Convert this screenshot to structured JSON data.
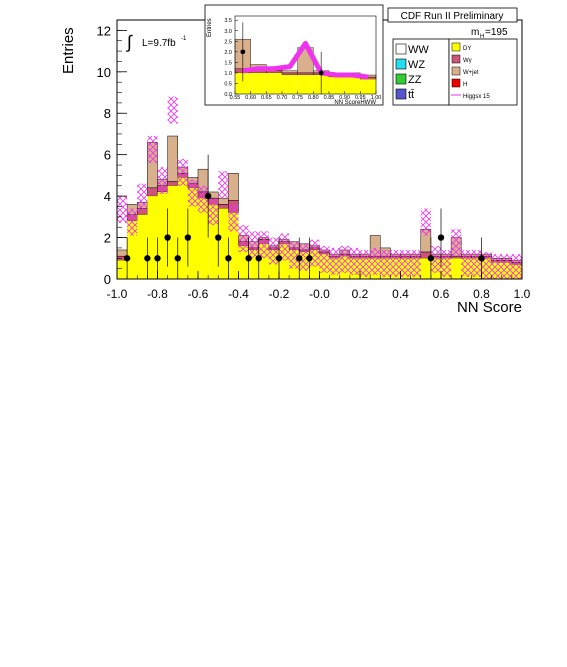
{
  "chart_data": {
    "type": "bar",
    "xlabel": "NN Score",
    "ylabel": "Entries",
    "xlim": [
      -1.0,
      1.0
    ],
    "ylim": [
      0,
      12.5
    ],
    "x_ticks": [
      "-1.0",
      "-0.8",
      "-0.6",
      "-0.4",
      "-0.2",
      "-0.0",
      "0.2",
      "0.4",
      "0.6",
      "0.8",
      "1.0"
    ],
    "y_ticks": [
      "0",
      "2",
      "4",
      "6",
      "8",
      "10",
      "12"
    ],
    "bin_edges": [
      -1.0,
      0.0
    ],
    "dy": [
      0.9,
      2.8,
      3.1,
      4.0,
      4.2,
      4.5,
      4.9,
      4.4,
      3.9,
      3.6,
      3.4,
      3.2,
      1.6,
      1.4,
      1.7,
      1.4,
      1.7,
      1.4,
      1.3,
      1.4,
      1.2,
      1.0,
      1.1,
      1.0,
      1.0,
      1.0,
      1.0,
      1.0,
      1.0,
      1.0,
      1.0,
      1.0,
      1.0,
      1.0,
      1.0,
      1.0,
      1.0,
      0.8,
      0.8,
      0.7
    ],
    "w_gamma": [
      0.2,
      0.3,
      0.3,
      0.4,
      0.3,
      0.2,
      0.2,
      0.2,
      0.3,
      0.3,
      0.2,
      0.6,
      0.2,
      0.1,
      0.2,
      0.1,
      0.1,
      0.1,
      0.1,
      0.1,
      0.1,
      0.1,
      0.1,
      0.1,
      0.1,
      0.1,
      0.1,
      0.1,
      0.1,
      0.1,
      0.3,
      0.1,
      0.1,
      0.1,
      0.1,
      0.1,
      0.1,
      0.1,
      0.1,
      0.1
    ],
    "w_jet": [
      0.3,
      0.5,
      0.3,
      2.2,
      0.3,
      2.2,
      0.3,
      0.3,
      1.1,
      0.3,
      0.3,
      1.3,
      0.3,
      0.3,
      0.1,
      0.1,
      0.1,
      0.3,
      0.3,
      0.1,
      0.1,
      0.1,
      0.2,
      0.1,
      0.1,
      1.0,
      0.4,
      0.1,
      0.1,
      0.1,
      1.1,
      0.1,
      0.1,
      0.9,
      0.1,
      0.1,
      0.1,
      0.1,
      0.1,
      0.1
    ],
    "data_points": [
      {
        "x": -0.95,
        "y": 1,
        "err": 1.0
      },
      {
        "x": -0.85,
        "y": 1,
        "err": 1.0
      },
      {
        "x": -0.8,
        "y": 1,
        "err": 1.0
      },
      {
        "x": -0.75,
        "y": 2,
        "err": 1.4
      },
      {
        "x": -0.7,
        "y": 1,
        "err": 1.0
      },
      {
        "x": -0.65,
        "y": 2,
        "err": 1.4
      },
      {
        "x": -0.55,
        "y": 4,
        "err": 2.0
      },
      {
        "x": -0.5,
        "y": 2,
        "err": 1.4
      },
      {
        "x": -0.45,
        "y": 1,
        "err": 1.0
      },
      {
        "x": -0.35,
        "y": 1,
        "err": 1.0
      },
      {
        "x": -0.3,
        "y": 1,
        "err": 1.0
      },
      {
        "x": -0.2,
        "y": 1,
        "err": 1.0
      },
      {
        "x": -0.1,
        "y": 1,
        "err": 1.0
      },
      {
        "x": -0.05,
        "y": 1,
        "err": 1.0
      },
      {
        "x": 0.55,
        "y": 1,
        "err": 1.0
      },
      {
        "x": 0.6,
        "y": 2,
        "err": 1.4
      },
      {
        "x": 0.8,
        "y": 1,
        "err": 1.0
      }
    ],
    "higgs_signal": [
      3.6,
      3.0,
      4.2,
      6.5,
      5.0,
      8.4,
      5.4,
      4.4,
      4.1,
      3.5,
      4.8,
      3.2,
      2.2,
      1.9,
      1.9,
      1.6,
      1.8,
      1.4,
      1.3,
      1.5,
      1.2,
      1.1,
      1.2,
      1.1,
      1.0,
      1.1,
      1.0,
      1.0,
      1.0,
      1.0,
      3.0,
      1.2,
      1.0,
      2.0,
      1.0,
      1.0,
      0.9,
      0.8,
      0.8,
      0.8
    ],
    "higgs_signal_bin_width": 0.05,
    "legend": {
      "left": [
        "WW",
        "WZ",
        "ZZ",
        "tt̄"
      ],
      "right": [
        "DY",
        "Wγ",
        "W+jet",
        "H",
        "Higgsx 15"
      ]
    },
    "colors": {
      "ww": "#ffffff",
      "wz": "#22ddee",
      "zz": "#33cc33",
      "tt": "#5555cc",
      "dy": "#ffff00",
      "w_gamma": "#cc5577",
      "w_jet": "#d9b08c",
      "h": "#ee0000",
      "higgs": "#ee33ee"
    }
  },
  "inset": {
    "ylabel": "Entries",
    "xlabel": "NN ScoreHWW",
    "x_ticks": [
      "0.55",
      "0.60",
      "0.65",
      "0.70",
      "0.75",
      "0.80",
      "0.85",
      "0.90",
      "0.95",
      "1.00"
    ],
    "y_ticks": [
      "0.0",
      "0.5",
      "1.0",
      "1.5",
      "2.0",
      "2.5",
      "3.0",
      "3.5"
    ],
    "xlim": [
      0.55,
      1.0
    ],
    "ylim": [
      0,
      3.7
    ],
    "bin_edges": [
      0.55,
      0.6,
      0.65,
      0.7,
      0.75,
      0.8,
      0.85,
      0.9,
      0.95,
      1.0
    ],
    "dy": [
      1.0,
      1.0,
      1.0,
      0.9,
      0.9,
      0.9,
      0.8,
      0.8,
      0.7
    ],
    "w_gamma": [
      0.2,
      0.1,
      0.1,
      0.1,
      0.1,
      0.1,
      0.1,
      0.1,
      0.1
    ],
    "w_jet": [
      1.4,
      0.3,
      0.1,
      0.1,
      1.2,
      0.1,
      0.1,
      0.1,
      0.1
    ],
    "higgs": [
      1.1,
      1.2,
      1.2,
      1.3,
      2.4,
      1.0,
      0.9,
      0.9,
      0.8
    ],
    "data_points": [
      {
        "x": 0.575,
        "y": 2,
        "err": 1.4
      },
      {
        "x": 0.825,
        "y": 1,
        "err": 1.0
      }
    ]
  },
  "labels": {
    "lumi": "L=9.7fb",
    "lumi_exp": "-1",
    "integral": "∫",
    "header": "CDF Run II Preliminary",
    "mass_prefix": "m",
    "mass_sub": "H",
    "mass_value": "=195"
  }
}
